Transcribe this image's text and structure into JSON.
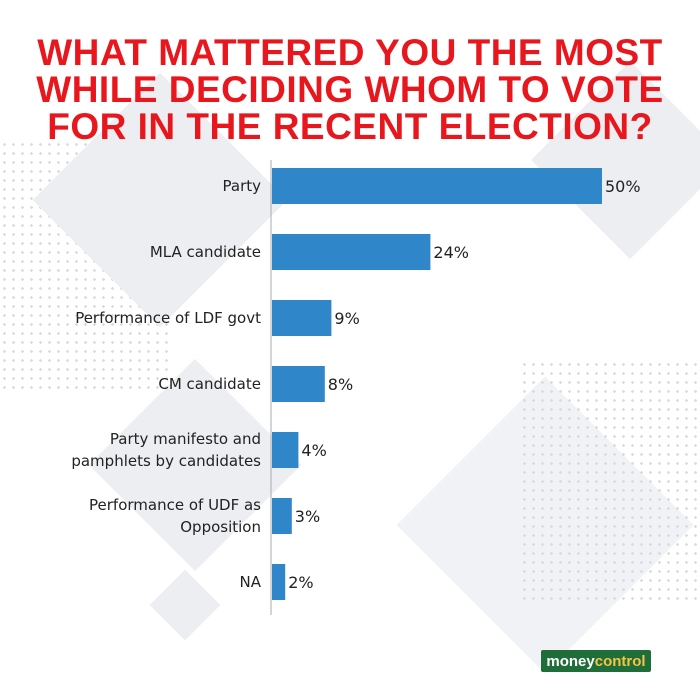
{
  "title_lines": [
    "WHAT MATTERED YOU THE MOST",
    "WHILE DECIDING WHOM TO VOTE",
    "FOR IN THE RECENT ELECTION?"
  ],
  "logo": {
    "part1": "money",
    "part2": "control"
  },
  "colors": {
    "title": "#e8171d",
    "bar": "#2f86c9",
    "axis": "#a7abb1",
    "text": "#222222"
  },
  "chart_data": {
    "type": "bar",
    "orientation": "horizontal",
    "title": "WHAT MATTERED YOU THE MOST WHILE DECIDING WHOM TO VOTE FOR IN THE RECENT ELECTION?",
    "categories": [
      [
        "Party"
      ],
      [
        "MLA candidate"
      ],
      [
        "Performance of LDF govt"
      ],
      [
        "CM candidate"
      ],
      [
        "Party manifesto and",
        "pamphlets by candidates"
      ],
      [
        "Performance of UDF as",
        "Opposition"
      ],
      [
        "NA"
      ]
    ],
    "values": [
      50,
      24,
      9,
      8,
      4,
      3,
      2
    ],
    "value_labels": [
      "50%",
      "24%",
      "9%",
      "8%",
      "4%",
      "3%",
      "2%"
    ],
    "unit": "%",
    "xlim": [
      0,
      50
    ],
    "grid": false,
    "legend": "none"
  }
}
